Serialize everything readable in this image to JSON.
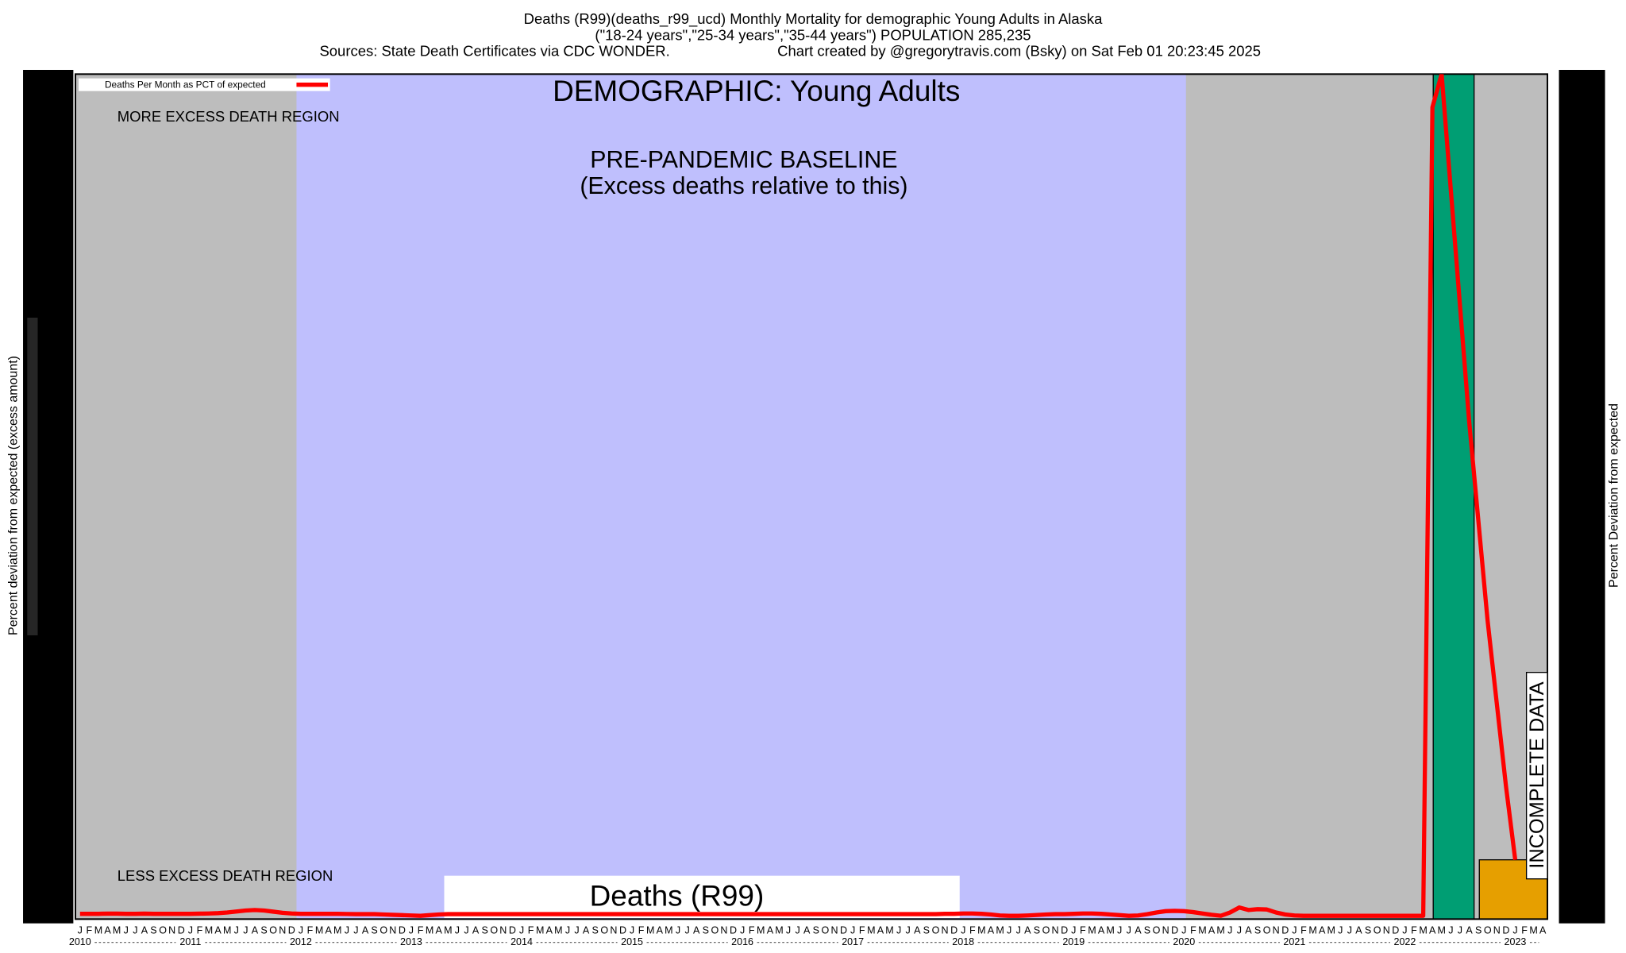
{
  "chart_data": {
    "type": "line",
    "title_lines": [
      "Deaths (R99)(deaths_r99_ucd) Monthly Mortality for demographic Young Adults in Alaska",
      "(\"18-24 years\",\"25-34 years\",\"35-44 years\") POPULATION 285,235"
    ],
    "sources": "Sources: State Death Certificates via CDC WONDER.",
    "credit": "Chart created by @gregorytravis.com (Bsky) on Sat Feb 01 20:23:45 2025",
    "demographic": "DEMOGRAPHIC: Young Adults",
    "annotations": {
      "more": "MORE EXCESS DEATH REGION",
      "less": "LESS EXCESS DEATH REGION",
      "baseline": "PRE-PANDEMIC BASELINE",
      "baseline_note": "(Excess deaths relative to this)",
      "cause": "Deaths (R99)",
      "incomplete": "INCOMPLETE DATA"
    },
    "y_label": "Percent deviation from expected (excess amount)",
    "y2_label": "Percent Deviation from expected",
    "years": [
      "2010",
      "2011",
      "2012",
      "2013",
      "2014",
      "2015",
      "2016",
      "2017",
      "2018",
      "2019",
      "2020",
      "2021",
      "2022",
      "2023"
    ],
    "categories": [
      "J",
      "F",
      "M",
      "A",
      "M",
      "J",
      "J",
      "A",
      "S",
      "O",
      "N",
      "D",
      "J",
      "F",
      "M",
      "A",
      "M",
      "J",
      "J",
      "A",
      "S",
      "O",
      "N",
      "D",
      "J",
      "F",
      "M",
      "A",
      "M",
      "J",
      "J",
      "A",
      "S",
      "O",
      "N",
      "D",
      "J",
      "F",
      "M",
      "A",
      "M",
      "J",
      "J",
      "A",
      "S",
      "O",
      "N",
      "D",
      "J",
      "F",
      "M",
      "A",
      "M",
      "J",
      "J",
      "A",
      "S",
      "O",
      "N",
      "D",
      "J",
      "F",
      "M",
      "A",
      "M",
      "J",
      "J",
      "A",
      "S",
      "O",
      "N",
      "D",
      "J",
      "F",
      "M",
      "A",
      "M",
      "J",
      "J",
      "A",
      "S",
      "O",
      "N",
      "D",
      "J",
      "F",
      "M",
      "A",
      "M",
      "J",
      "J",
      "A",
      "S",
      "O",
      "N",
      "D",
      "J",
      "F",
      "M",
      "A",
      "M",
      "J",
      "J",
      "A",
      "S",
      "O",
      "N",
      "D",
      "J",
      "F",
      "M",
      "A",
      "M",
      "J",
      "J",
      "A",
      "S",
      "O",
      "N",
      "D",
      "J",
      "F",
      "M",
      "A",
      "M",
      "J",
      "J",
      "A",
      "S",
      "O",
      "N",
      "D",
      "J",
      "F",
      "M",
      "A",
      "M",
      "J",
      "J",
      "A",
      "S",
      "O",
      "N",
      "D",
      "J",
      "F",
      "M",
      "A",
      "M",
      "J",
      "J",
      "A",
      "S",
      "O",
      "N",
      "D",
      "J",
      "F",
      "M",
      "A"
    ],
    "series": [
      {
        "name": "Deaths Per Month as PCT of expected",
        "color": "#ff0000",
        "values": [
          -68,
          -68,
          -68,
          -67,
          -67,
          -68,
          -68,
          -67,
          -68,
          -68,
          -68,
          -68,
          -68,
          -67,
          -66,
          -64,
          -60,
          -54,
          -48,
          -45,
          -48,
          -55,
          -62,
          -66,
          -68,
          -68,
          -68,
          -68,
          -68,
          -69,
          -70,
          -70,
          -70,
          -72,
          -74,
          -76,
          -78,
          -80,
          -76,
          -72,
          -70,
          -70,
          -70,
          -70,
          -70,
          -70,
          -70,
          -70,
          -70,
          -70,
          -70,
          -70,
          -70,
          -70,
          -70,
          -70,
          -70,
          -70,
          -70,
          -70,
          -70,
          -70,
          -70,
          -70,
          -70,
          -70,
          -70,
          -70,
          -70,
          -70,
          -70,
          -70,
          -70,
          -70,
          -70,
          -70,
          -70,
          -70,
          -70,
          -70,
          -70,
          -70,
          -70,
          -70,
          -70,
          -70,
          -70,
          -70,
          -70,
          -70,
          -70,
          -70,
          -70,
          -70,
          -68,
          -68,
          -66,
          -66,
          -68,
          -72,
          -78,
          -80,
          -80,
          -78,
          -75,
          -72,
          -70,
          -70,
          -68,
          -66,
          -66,
          -68,
          -72,
          -76,
          -80,
          -78,
          -70,
          -60,
          -52,
          -50,
          -52,
          -58,
          -66,
          -74,
          -80,
          -60,
          -30,
          -45,
          -40,
          -42,
          -60,
          -72,
          -78,
          -80,
          -80,
          -80,
          -80,
          -80,
          -80,
          -80,
          -80,
          -80,
          -80,
          -80,
          -80,
          -80,
          -80,
          4800,
          5000,
          4300,
          3600,
          2900,
          2300,
          1700,
          1200,
          700,
          258,
          null,
          null,
          null
        ]
      }
    ],
    "ylim": [
      -100,
      5000
    ]
  }
}
